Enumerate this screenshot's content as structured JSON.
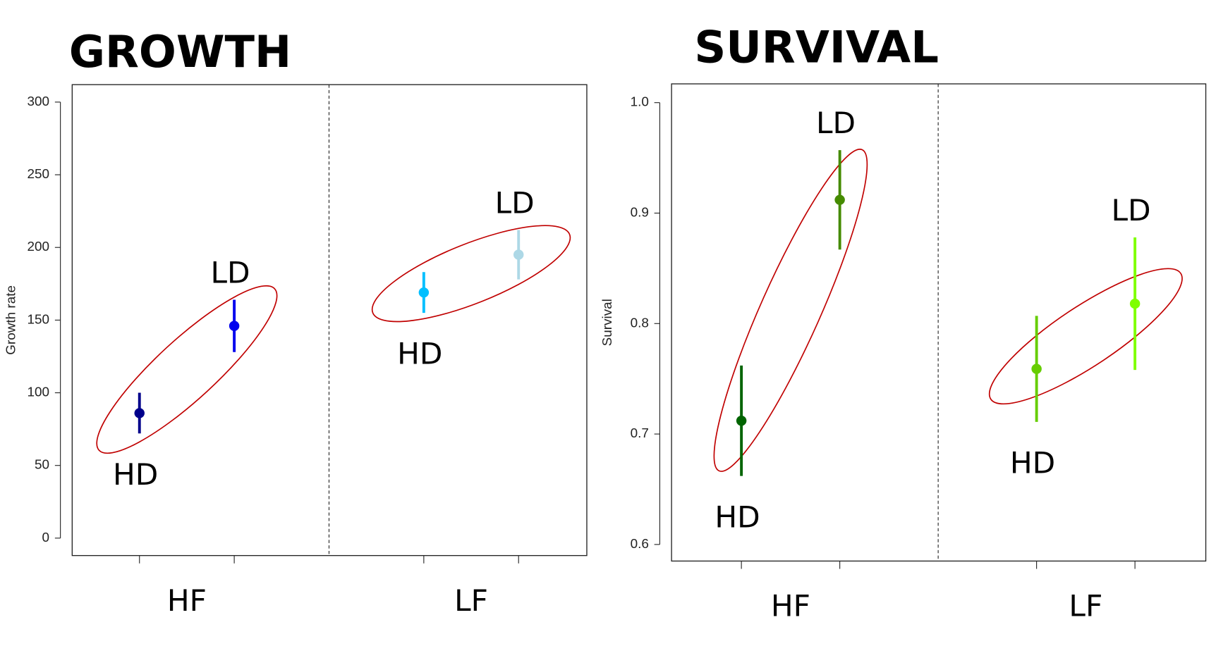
{
  "chart_data": [
    {
      "type": "errorbar",
      "title": "GROWTH",
      "ylabel": "Growth rate",
      "ylim": [
        -12,
        312
      ],
      "yticks": [
        0,
        50,
        100,
        150,
        200,
        250,
        300
      ],
      "groups": [
        {
          "name": "HF",
          "points": [
            {
              "label": "HD",
              "value": 86,
              "error": 14,
              "color": "#00008b"
            },
            {
              "label": "LD",
              "value": 146,
              "error": 18,
              "color": "#0000ee"
            }
          ]
        },
        {
          "name": "LF",
          "points": [
            {
              "label": "HD",
              "value": 169,
              "error": 14,
              "color": "#00bfff"
            },
            {
              "label": "LD",
              "value": 195,
              "error": 17,
              "color": "#add8e6"
            }
          ]
        }
      ]
    },
    {
      "type": "errorbar",
      "title": "SURVIVAL",
      "ylabel": "Survival",
      "ylim": [
        0.585,
        1.017
      ],
      "yticks": [
        0.6,
        0.7,
        0.8,
        0.9,
        {
          "value": 1,
          "label": "1.0"
        }
      ],
      "groups": [
        {
          "name": "HF",
          "points": [
            {
              "label": "HD",
              "value": 0.712,
              "error": 0.05,
              "color": "#006400"
            },
            {
              "label": "LD",
              "value": 0.912,
              "error": 0.045,
              "color": "#458b00"
            }
          ]
        },
        {
          "name": "LF",
          "points": [
            {
              "label": "HD",
              "value": 0.759,
              "error": 0.048,
              "color": "#66cd00"
            },
            {
              "label": "LD",
              "value": 0.818,
              "error": 0.06,
              "color": "#7fff00"
            }
          ]
        }
      ]
    }
  ]
}
